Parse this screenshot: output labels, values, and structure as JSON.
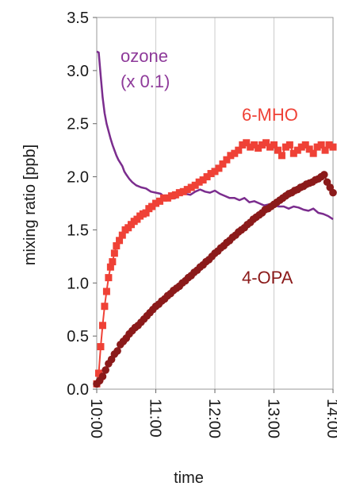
{
  "chart_data": {
    "type": "scatter",
    "title": "",
    "xlabel": "time",
    "ylabel": "mixing ratio  [ppb]",
    "x_ticks": [
      "10:00",
      "11:00",
      "12:00",
      "13:00",
      "14:00"
    ],
    "y_ticks": [
      "0.0",
      "0.5",
      "1.0",
      "1.5",
      "2.0",
      "2.5",
      "3.0",
      "3.5"
    ],
    "xlim": [
      "10:00",
      "14:00"
    ],
    "ylim": [
      0,
      3.5
    ],
    "grid": "vertical",
    "series": [
      {
        "name": "ozone\n(x 0.1)",
        "label_lines": [
          "ozone",
          "(x 0.1)"
        ],
        "label_color": "#8e3a9a",
        "color": "#7b2d8e",
        "style": "line",
        "x": [
          "10:00",
          "10:02",
          "10:04",
          "10:06",
          "10:08",
          "10:10",
          "10:12",
          "10:14",
          "10:16",
          "10:18",
          "10:20",
          "10:22",
          "10:24",
          "10:26",
          "10:28",
          "10:30",
          "10:33",
          "10:36",
          "10:40",
          "10:45",
          "10:50",
          "10:55",
          "11:00",
          "11:05",
          "11:10",
          "11:15",
          "11:20",
          "11:25",
          "11:30",
          "11:35",
          "11:40",
          "11:45",
          "11:50",
          "11:55",
          "12:00",
          "12:05",
          "12:10",
          "12:15",
          "12:20",
          "12:25",
          "12:30",
          "12:35",
          "12:40",
          "12:45",
          "12:50",
          "12:55",
          "13:00",
          "13:05",
          "13:10",
          "13:15",
          "13:20",
          "13:25",
          "13:30",
          "13:35",
          "13:40",
          "13:45",
          "13:50",
          "13:55",
          "14:00"
        ],
        "y": [
          3.18,
          3.17,
          2.95,
          2.75,
          2.6,
          2.5,
          2.43,
          2.36,
          2.3,
          2.25,
          2.2,
          2.16,
          2.13,
          2.1,
          2.05,
          2.02,
          1.98,
          1.95,
          1.92,
          1.9,
          1.89,
          1.86,
          1.85,
          1.84,
          1.8,
          1.82,
          1.8,
          1.85,
          1.84,
          1.83,
          1.86,
          1.88,
          1.86,
          1.85,
          1.87,
          1.84,
          1.82,
          1.8,
          1.8,
          1.78,
          1.8,
          1.76,
          1.77,
          1.75,
          1.73,
          1.74,
          1.73,
          1.72,
          1.72,
          1.7,
          1.72,
          1.71,
          1.69,
          1.68,
          1.7,
          1.66,
          1.65,
          1.63,
          1.6
        ]
      },
      {
        "name": "6-MHO",
        "label_lines": [
          "6-MHO"
        ],
        "label_color": "#ef4136",
        "color": "#ef4136",
        "style": "square",
        "x": [
          "10:00",
          "10:02",
          "10:04",
          "10:06",
          "10:08",
          "10:10",
          "10:12",
          "10:14",
          "10:16",
          "10:18",
          "10:20",
          "10:23",
          "10:26",
          "10:29",
          "10:32",
          "10:35",
          "10:38",
          "10:41",
          "10:44",
          "10:47",
          "10:50",
          "10:53",
          "10:56",
          "11:00",
          "11:04",
          "11:08",
          "11:12",
          "11:16",
          "11:20",
          "11:24",
          "11:28",
          "11:32",
          "11:36",
          "11:40",
          "11:44",
          "11:48",
          "11:52",
          "11:56",
          "12:00",
          "12:04",
          "12:08",
          "12:12",
          "12:16",
          "12:20",
          "12:24",
          "12:28",
          "12:32",
          "12:36",
          "12:40",
          "12:44",
          "12:48",
          "12:52",
          "12:56",
          "13:00",
          "13:04",
          "13:08",
          "13:12",
          "13:16",
          "13:20",
          "13:24",
          "13:28",
          "13:32",
          "13:36",
          "13:40",
          "13:44",
          "13:48",
          "13:52",
          "13:56",
          "14:00"
        ],
        "y": [
          0.05,
          0.15,
          0.4,
          0.6,
          0.78,
          0.92,
          1.05,
          1.15,
          1.2,
          1.28,
          1.35,
          1.4,
          1.45,
          1.5,
          1.52,
          1.55,
          1.58,
          1.6,
          1.63,
          1.65,
          1.66,
          1.7,
          1.72,
          1.75,
          1.77,
          1.8,
          1.8,
          1.82,
          1.83,
          1.85,
          1.86,
          1.88,
          1.9,
          1.92,
          1.95,
          1.97,
          2.0,
          2.03,
          2.05,
          2.08,
          2.12,
          2.16,
          2.2,
          2.22,
          2.25,
          2.3,
          2.32,
          2.28,
          2.3,
          2.27,
          2.3,
          2.32,
          2.28,
          2.3,
          2.25,
          2.2,
          2.28,
          2.3,
          2.22,
          2.25,
          2.28,
          2.3,
          2.26,
          2.22,
          2.28,
          2.3,
          2.25,
          2.3,
          2.28
        ]
      },
      {
        "name": "4-OPA",
        "label_lines": [
          "4-OPA"
        ],
        "label_color": "#8b1a1a",
        "color": "#8b1a1a",
        "style": "circle",
        "x": [
          "10:00",
          "10:03",
          "10:06",
          "10:09",
          "10:12",
          "10:15",
          "10:18",
          "10:21",
          "10:24",
          "10:27",
          "10:30",
          "10:33",
          "10:36",
          "10:39",
          "10:42",
          "10:45",
          "10:48",
          "10:51",
          "10:54",
          "10:57",
          "11:00",
          "11:03",
          "11:06",
          "11:09",
          "11:12",
          "11:15",
          "11:18",
          "11:21",
          "11:24",
          "11:27",
          "11:30",
          "11:33",
          "11:36",
          "11:39",
          "11:42",
          "11:45",
          "11:48",
          "11:51",
          "11:54",
          "11:57",
          "12:00",
          "12:03",
          "12:06",
          "12:09",
          "12:12",
          "12:15",
          "12:18",
          "12:21",
          "12:24",
          "12:27",
          "12:30",
          "12:33",
          "12:36",
          "12:39",
          "12:42",
          "12:45",
          "12:48",
          "12:51",
          "12:54",
          "12:57",
          "13:00",
          "13:03",
          "13:06",
          "13:09",
          "13:12",
          "13:15",
          "13:18",
          "13:21",
          "13:24",
          "13:27",
          "13:30",
          "13:33",
          "13:36",
          "13:39",
          "13:42",
          "13:45",
          "13:48",
          "13:51",
          "13:54",
          "13:57",
          "14:00"
        ],
        "y": [
          0.05,
          0.08,
          0.12,
          0.18,
          0.24,
          0.28,
          0.33,
          0.36,
          0.42,
          0.45,
          0.48,
          0.52,
          0.55,
          0.58,
          0.6,
          0.63,
          0.66,
          0.69,
          0.72,
          0.75,
          0.78,
          0.8,
          0.83,
          0.85,
          0.88,
          0.9,
          0.93,
          0.95,
          0.97,
          1.0,
          1.02,
          1.05,
          1.07,
          1.1,
          1.12,
          1.15,
          1.17,
          1.2,
          1.22,
          1.25,
          1.28,
          1.3,
          1.33,
          1.35,
          1.38,
          1.4,
          1.43,
          1.45,
          1.48,
          1.5,
          1.52,
          1.55,
          1.57,
          1.6,
          1.62,
          1.64,
          1.66,
          1.69,
          1.7,
          1.72,
          1.74,
          1.76,
          1.78,
          1.8,
          1.82,
          1.84,
          1.85,
          1.87,
          1.88,
          1.9,
          1.91,
          1.93,
          1.94,
          1.95,
          1.97,
          1.98,
          2.0,
          2.02,
          1.95,
          1.9,
          1.85
        ]
      }
    ]
  }
}
